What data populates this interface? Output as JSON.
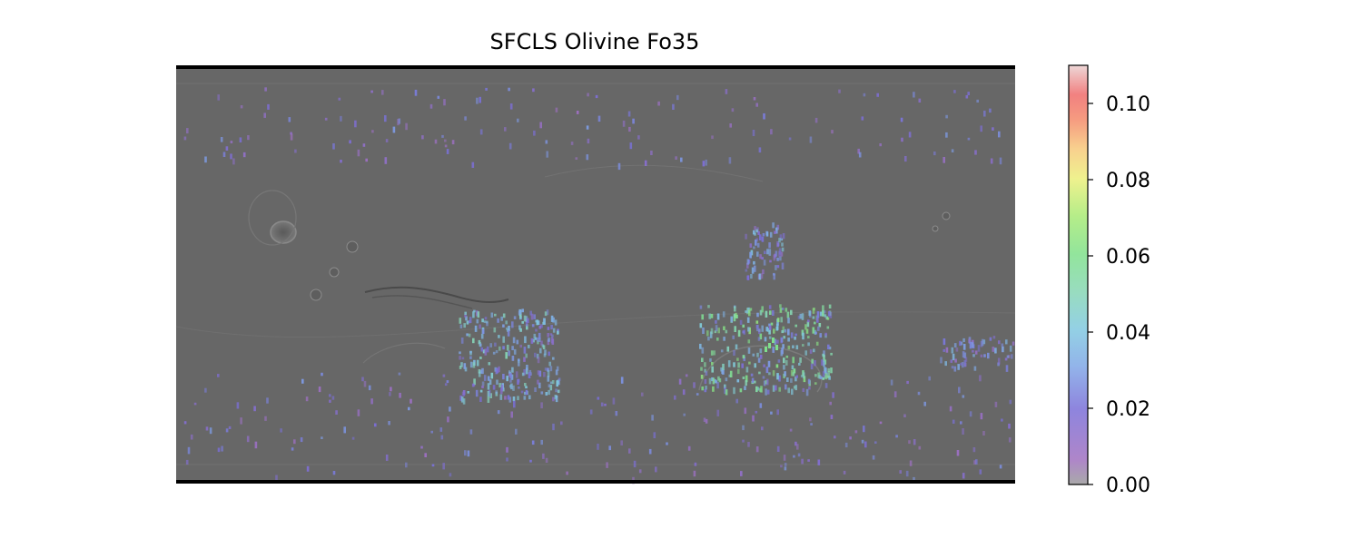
{
  "chart_data": {
    "type": "heatmap",
    "title": "SFCLS Olivine Fo35",
    "map_projection": "equirectangular",
    "basemap": "grayscale shaded-relief surface",
    "colormap": "nipy_spectral (semi-transparent)",
    "colorbar": {
      "vmin": 0.0,
      "vmax": 0.11,
      "ticks": [
        0.0,
        0.02,
        0.04,
        0.06,
        0.08,
        0.1
      ],
      "tick_labels": [
        "0.00",
        "0.02",
        "0.04",
        "0.06",
        "0.08",
        "0.10"
      ],
      "position": "right"
    },
    "clusters": [
      {
        "region": "west-central-south",
        "intensity": 0.035,
        "spread": "dense"
      },
      {
        "region": "central-east-south",
        "intensity": 0.045,
        "spread": "dense"
      },
      {
        "region": "central-east-north",
        "intensity": 0.03,
        "spread": "medium"
      },
      {
        "region": "far-east",
        "intensity": 0.025,
        "spread": "medium"
      },
      {
        "region": "north-polar-band",
        "intensity": 0.02,
        "spread": "sparse"
      },
      {
        "region": "south-polar-band",
        "intensity": 0.02,
        "spread": "sparse"
      }
    ]
  }
}
